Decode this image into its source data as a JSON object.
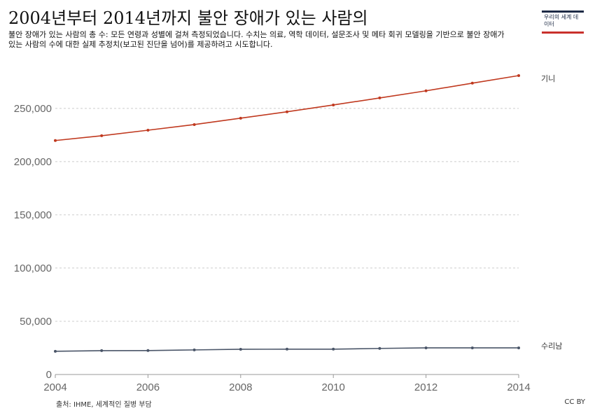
{
  "header": {
    "title": "2004년부터 2014년까지 불안 장애가 있는 사람의",
    "subtitle": "불안 장애가 있는 사람의 총 수: 모든 연령과 성별에 걸쳐 측정되었습니다. 수치는 의료, 역학 데이터, 설문조사 및 메타 회귀 모델링을 기반으로 불안 장애가 있는 사람의 수에 대한 실제 추정치(보고된 진단을 넘어)를 제공하려고 시도합니다."
  },
  "logo": {
    "text": "우리의 세계 데이터"
  },
  "footer": {
    "source": "출처: IHME, 세계적인 질병 부담",
    "license": "CC BY"
  },
  "chart_data": {
    "type": "line",
    "x": [
      2004,
      2005,
      2006,
      2007,
      2008,
      2009,
      2010,
      2011,
      2012,
      2013,
      2014
    ],
    "series": [
      {
        "name": "기니",
        "color": "#c0391f",
        "values": [
          219800,
          224300,
          229500,
          234800,
          240800,
          246800,
          253200,
          259800,
          266500,
          273700,
          280800
        ]
      },
      {
        "name": "수리남",
        "color": "#4a5568",
        "values": [
          21800,
          22400,
          22500,
          23100,
          23700,
          23800,
          23800,
          24500,
          25000,
          25000,
          25000
        ]
      }
    ],
    "xticks": [
      "2004",
      "2006",
      "2008",
      "2010",
      "2012",
      "2014"
    ],
    "yticks": [
      "0",
      "50,000",
      "100,000",
      "150,000",
      "200,000",
      "250,000"
    ],
    "xlim": [
      2004,
      2014
    ],
    "ylim": [
      0,
      280800
    ],
    "grid": true
  }
}
